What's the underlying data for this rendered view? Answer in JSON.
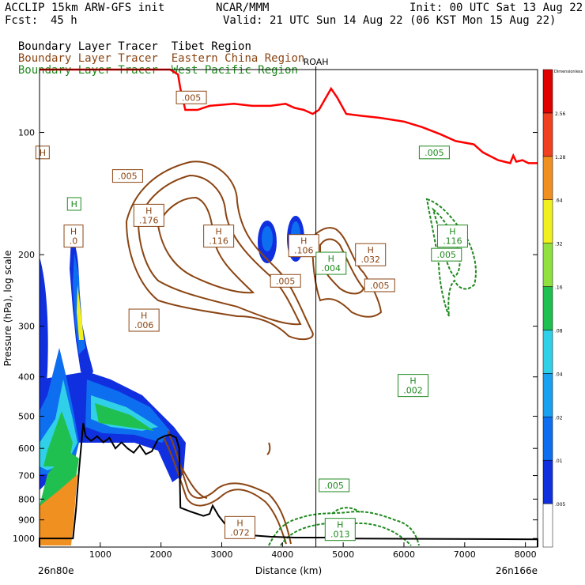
{
  "header": {
    "model": "ACCLIP 15km ARW-GFS init",
    "center": "NCAR/MMM",
    "init": "Init: 00 UTC Sat 13 Aug 22",
    "fcst_label": "Fcst:",
    "fcst_value": "45 h",
    "valid": "Valid: 21 UTC Sun 14 Aug 22 (06 KST Mon 15 Aug 22)",
    "tracers": [
      {
        "prefix": "Boundary Layer Tracer",
        "region": "Tibet Region",
        "color": "#000000"
      },
      {
        "prefix": "Boundary Layer Tracer",
        "region": "Eastern China Region",
        "color": "#8B4513"
      },
      {
        "prefix": "Boundary Layer Tracer",
        "region": "West Pacific Region",
        "color": "#1f8a1f"
      }
    ]
  },
  "chart_data": {
    "type": "cross-section",
    "xlabel": "Distance (km)",
    "ylabel": "Pressure (hPa), log scale",
    "xlim": [
      0,
      8200
    ],
    "ylim": [
      1050,
      70
    ],
    "x_ticks": [
      "1000",
      "2000",
      "3000",
      "4000",
      "5000",
      "6000",
      "7000",
      "8000"
    ],
    "y_ticks": [
      "100",
      "200",
      "300",
      "400",
      "500",
      "600",
      "700",
      "800",
      "900",
      "1000"
    ],
    "left_endpoint": "26n80e",
    "right_endpoint": "26n166e",
    "vertical_marker": {
      "label": "ROAH",
      "x_km": 4550
    },
    "colorbar": {
      "top_label": "Dimensionless",
      "levels": [
        ".005",
        ".01",
        ".02",
        ".04",
        ".08",
        ".16",
        ".32",
        ".64",
        "1.28",
        "2.56"
      ],
      "colors": [
        "#ffffff",
        "#1030e0",
        "#0e6ef0",
        "#1aa0f0",
        "#30d0e8",
        "#20c050",
        "#90e040",
        "#f0f020",
        "#f09020",
        "#f04020",
        "#e00000"
      ]
    },
    "labels": [
      {
        "text": "H\n.176",
        "x": 1800,
        "p": 160,
        "color": "#8B4513"
      },
      {
        "text": "H\n.116",
        "x": 2950,
        "p": 180,
        "color": "#8B4513"
      },
      {
        "text": "H\n.106",
        "x": 4350,
        "p": 190,
        "color": "#8B4513"
      },
      {
        "text": "H\n.004",
        "x": 4800,
        "p": 210,
        "color": "#1f8a1f"
      },
      {
        "text": "H\n.032",
        "x": 5450,
        "p": 200,
        "color": "#8B4513"
      },
      {
        "text": "H\n.116",
        "x": 6800,
        "p": 180,
        "color": "#1f8a1f"
      },
      {
        "text": "H\n.006",
        "x": 1720,
        "p": 290,
        "color": "#8B4513"
      },
      {
        "text": "H\n.002",
        "x": 6150,
        "p": 420,
        "color": "#1f8a1f"
      },
      {
        "text": "H\n.072",
        "x": 3300,
        "p": 940,
        "color": "#8B4513"
      },
      {
        "text": "H\n.013",
        "x": 4950,
        "p": 950,
        "color": "#1f8a1f"
      },
      {
        "text": ".005",
        "x": 2500,
        "p": 82,
        "color": "#8B4513"
      },
      {
        "text": ".005",
        "x": 1450,
        "p": 128,
        "color": "#8B4513"
      },
      {
        "text": ".005",
        "x": 4050,
        "p": 232,
        "color": "#8B4513"
      },
      {
        "text": ".005",
        "x": 5600,
        "p": 238,
        "color": "#8B4513"
      },
      {
        "text": ".005",
        "x": 6500,
        "p": 112,
        "color": "#1f8a1f"
      },
      {
        "text": ".005",
        "x": 6700,
        "p": 200,
        "color": "#1f8a1f"
      },
      {
        "text": ".005",
        "x": 4850,
        "p": 740,
        "color": "#1f8a1f"
      },
      {
        "text": "H\n.0",
        "x": 560,
        "p": 180,
        "color": "#8B4513"
      },
      {
        "text": "H",
        "x": 570,
        "p": 150,
        "color": "#1f8a1f"
      },
      {
        "text": "H",
        "x": 50,
        "p": 112,
        "color": "#8B4513"
      }
    ],
    "tropopause": [
      [
        0,
        70
      ],
      [
        2150,
        70
      ],
      [
        2280,
        72
      ],
      [
        2320,
        78
      ],
      [
        2400,
        88
      ],
      [
        2600,
        88
      ],
      [
        2800,
        86
      ],
      [
        3200,
        85
      ],
      [
        3500,
        86
      ],
      [
        3800,
        86
      ],
      [
        4050,
        85
      ],
      [
        4200,
        87
      ],
      [
        4350,
        88
      ],
      [
        4500,
        90
      ],
      [
        4600,
        88
      ],
      [
        4800,
        78
      ],
      [
        4900,
        82
      ],
      [
        5050,
        90
      ],
      [
        5300,
        91
      ],
      [
        5600,
        92
      ],
      [
        6000,
        94
      ],
      [
        6300,
        97
      ],
      [
        6600,
        101
      ],
      [
        6850,
        105
      ],
      [
        7150,
        107
      ],
      [
        7300,
        112
      ],
      [
        7550,
        117
      ],
      [
        7750,
        119
      ],
      [
        7800,
        114
      ],
      [
        7850,
        118
      ],
      [
        7950,
        117
      ],
      [
        8050,
        119
      ],
      [
        8200,
        119
      ]
    ],
    "terrain": [
      [
        0,
        1050
      ],
      [
        0,
        1000
      ],
      [
        550,
        1000
      ],
      [
        600,
        850
      ],
      [
        650,
        680
      ],
      [
        700,
        560
      ],
      [
        720,
        520
      ],
      [
        760,
        560
      ],
      [
        850,
        575
      ],
      [
        950,
        560
      ],
      [
        1050,
        580
      ],
      [
        1150,
        565
      ],
      [
        1250,
        600
      ],
      [
        1350,
        580
      ],
      [
        1450,
        600
      ],
      [
        1550,
        615
      ],
      [
        1650,
        590
      ],
      [
        1750,
        620
      ],
      [
        1850,
        610
      ],
      [
        1950,
        570
      ],
      [
        2050,
        560
      ],
      [
        2150,
        555
      ],
      [
        2250,
        565
      ],
      [
        2300,
        600
      ],
      [
        2320,
        840
      ],
      [
        2500,
        860
      ],
      [
        2700,
        880
      ],
      [
        2800,
        870
      ],
      [
        2850,
        830
      ],
      [
        2950,
        880
      ],
      [
        3100,
        940
      ],
      [
        3400,
        980
      ],
      [
        3800,
        990
      ],
      [
        4200,
        995
      ],
      [
        4700,
        995
      ],
      [
        4750,
        970
      ],
      [
        4800,
        1000
      ],
      [
        8200,
        1005
      ],
      [
        8200,
        1050
      ]
    ]
  }
}
